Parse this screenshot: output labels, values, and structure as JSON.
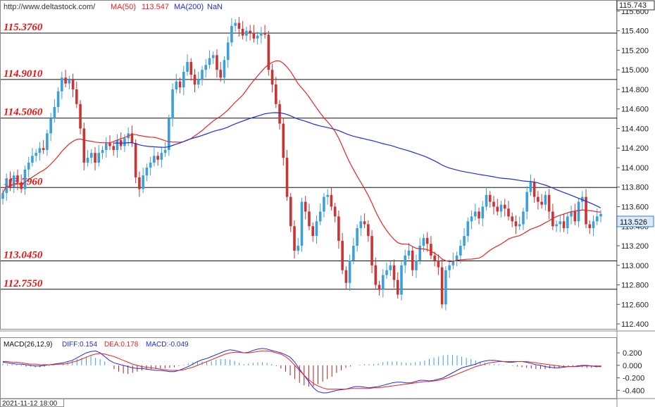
{
  "header": {
    "site": "http://www.deltastock.com/",
    "ma50_label": "MA(50)",
    "ma50_value": "113.547",
    "ma200_label": "MA(200)",
    "ma200_value": "NaN"
  },
  "macd_header": {
    "name": "MACD(26,12,9)",
    "diff": "DIFF:0.154",
    "dea": "DEA:0.178",
    "macd": "MACD:-0.049"
  },
  "footer": {
    "datetime": "2021-11-12 18:00"
  },
  "colors": {
    "up": "#3aa0dd",
    "down": "#cc3333",
    "ma50": "#ee2222",
    "ma200": "#1f2ee0",
    "level_text": "#ee1111",
    "diff": "#1f2ee0",
    "dea": "#ee2222"
  },
  "chart_data": [
    {
      "type": "candlestick",
      "ylim": [
        112.35,
        115.7
      ],
      "y_ticks": [
        "115.600",
        "115.400",
        "115.200",
        "115.000",
        "114.800",
        "114.600",
        "114.400",
        "114.200",
        "114.000",
        "113.800",
        "113.600",
        "113.400",
        "113.200",
        "113.000",
        "112.800",
        "112.600",
        "112.400"
      ],
      "top_readout": "115.743",
      "last_price": "113.526",
      "levels": [
        {
          "value": 115.376,
          "label": "115.3760"
        },
        {
          "value": 114.901,
          "label": "114.9010"
        },
        {
          "value": 114.506,
          "label": "114.5060"
        },
        {
          "value": 113.796,
          "label": "113.7960"
        },
        {
          "value": 113.045,
          "label": "113.0450"
        },
        {
          "value": 112.755,
          "label": "112.7550"
        }
      ],
      "close": [
        113.74,
        113.88,
        113.8,
        113.92,
        113.85,
        113.78,
        113.98,
        114.05,
        114.12,
        114.15,
        114.2,
        114.18,
        114.35,
        114.5,
        114.62,
        114.78,
        114.92,
        114.86,
        114.9,
        114.8,
        114.65,
        114.4,
        114.05,
        114.1,
        114.15,
        114.05,
        114.15,
        114.18,
        114.25,
        114.22,
        114.18,
        114.28,
        114.22,
        114.3,
        114.35,
        114.25,
        113.9,
        113.78,
        113.92,
        114.0,
        114.05,
        114.12,
        114.08,
        114.15,
        114.18,
        114.5,
        114.8,
        114.88,
        114.82,
        114.98,
        115.08,
        114.95,
        114.85,
        114.9,
        115.0,
        115.05,
        115.12,
        115.15,
        115.0,
        114.92,
        115.1,
        115.28,
        115.45,
        115.48,
        115.42,
        115.35,
        115.4,
        115.38,
        115.32,
        115.35,
        115.38,
        115.36,
        115.0,
        114.85,
        114.65,
        114.45,
        114.1,
        113.7,
        113.4,
        113.15,
        113.2,
        113.65,
        113.55,
        113.4,
        113.3,
        113.45,
        113.55,
        113.7,
        113.72,
        113.6,
        113.5,
        113.25,
        112.95,
        112.82,
        113.05,
        113.2,
        113.38,
        113.45,
        113.42,
        113.3,
        113.0,
        112.8,
        112.75,
        112.9,
        112.95,
        113.0,
        112.85,
        112.7,
        113.0,
        113.1,
        113.15,
        112.95,
        113.05,
        113.2,
        113.28,
        113.22,
        113.1,
        113.05,
        112.98,
        112.6,
        112.95,
        113.0,
        113.05,
        113.1,
        113.2,
        113.3,
        113.45,
        113.5,
        113.55,
        113.48,
        113.6,
        113.72,
        113.65,
        113.6,
        113.55,
        113.62,
        113.58,
        113.5,
        113.45,
        113.4,
        113.42,
        113.55,
        113.75,
        113.85,
        113.7,
        113.65,
        113.62,
        113.72,
        113.55,
        113.4,
        113.42,
        113.45,
        113.38,
        113.5,
        113.55,
        113.45,
        113.65,
        113.7,
        113.42,
        113.38,
        113.45,
        113.5,
        113.526
      ]
    },
    {
      "type": "macd",
      "ylim": [
        -0.52,
        0.28
      ],
      "y_ticks": [
        "0.200",
        "0.000",
        "-0.200",
        "-0.400"
      ],
      "diff": [
        0.05,
        0.04,
        0.03,
        0.02,
        0.02,
        0.01,
        0.0,
        -0.01,
        -0.01,
        0.0,
        0.01,
        0.02,
        0.03,
        0.04,
        0.06,
        0.08,
        0.12,
        0.16,
        0.2,
        0.22,
        0.23,
        0.2,
        0.14,
        0.08,
        0.04,
        0.02,
        0.0,
        -0.02,
        -0.04,
        -0.05,
        -0.05,
        -0.06,
        -0.07,
        -0.08,
        -0.08,
        -0.09,
        -0.1,
        -0.1,
        -0.08,
        -0.05,
        -0.02,
        0.02,
        0.06,
        0.09,
        0.11,
        0.14,
        0.17,
        0.2,
        0.23,
        0.25,
        0.24,
        0.22,
        0.2,
        0.21,
        0.24,
        0.26,
        0.27,
        0.26,
        0.24,
        0.22,
        0.2,
        0.17,
        0.13,
        0.05,
        -0.06,
        -0.16,
        -0.26,
        -0.36,
        -0.42,
        -0.44,
        -0.44,
        -0.42,
        -0.4,
        -0.39,
        -0.38,
        -0.36,
        -0.34,
        -0.34,
        -0.35,
        -0.36,
        -0.35,
        -0.34,
        -0.32,
        -0.3,
        -0.28,
        -0.27,
        -0.27,
        -0.28,
        -0.28,
        -0.26,
        -0.24,
        -0.24,
        -0.25,
        -0.24,
        -0.22,
        -0.2,
        -0.16,
        -0.12,
        -0.08,
        -0.04,
        -0.02,
        0.0,
        0.02,
        0.05,
        0.07,
        0.08,
        0.08,
        0.07,
        0.06,
        0.05,
        0.05,
        0.06,
        0.06,
        0.05,
        0.03,
        0.01,
        0.0,
        -0.02,
        -0.03,
        -0.04,
        -0.04,
        -0.03,
        -0.02,
        -0.02,
        -0.01,
        0.0,
        0.0,
        -0.01,
        -0.02,
        -0.02
      ],
      "dea": [
        0.06,
        0.06,
        0.05,
        0.05,
        0.04,
        0.03,
        0.02,
        0.02,
        0.01,
        0.01,
        0.01,
        0.01,
        0.02,
        0.02,
        0.03,
        0.05,
        0.07,
        0.1,
        0.13,
        0.16,
        0.18,
        0.19,
        0.18,
        0.16,
        0.14,
        0.11,
        0.08,
        0.05,
        0.02,
        0.0,
        -0.02,
        -0.03,
        -0.04,
        -0.05,
        -0.06,
        -0.07,
        -0.08,
        -0.08,
        -0.08,
        -0.07,
        -0.05,
        -0.03,
        0.0,
        0.03,
        0.06,
        0.09,
        0.12,
        0.15,
        0.18,
        0.2,
        0.21,
        0.21,
        0.2,
        0.2,
        0.21,
        0.22,
        0.23,
        0.23,
        0.22,
        0.2,
        0.18,
        0.14,
        0.08,
        0.0,
        -0.08,
        -0.16,
        -0.23,
        -0.29,
        -0.33,
        -0.36,
        -0.38,
        -0.38,
        -0.38,
        -0.38,
        -0.38,
        -0.37,
        -0.37,
        -0.37,
        -0.37,
        -0.37,
        -0.36,
        -0.36,
        -0.35,
        -0.34,
        -0.33,
        -0.32,
        -0.31,
        -0.3,
        -0.29,
        -0.28,
        -0.27,
        -0.26,
        -0.26,
        -0.25,
        -0.24,
        -0.22,
        -0.2,
        -0.17,
        -0.14,
        -0.11,
        -0.08,
        -0.05,
        -0.02,
        0.0,
        0.02,
        0.04,
        0.05,
        0.06,
        0.06,
        0.06,
        0.06,
        0.06,
        0.06,
        0.06,
        0.05,
        0.04,
        0.03,
        0.02,
        0.01,
        0.0,
        -0.01,
        -0.02,
        -0.02,
        -0.02,
        -0.02,
        -0.01,
        -0.01,
        -0.01,
        -0.01,
        -0.01
      ],
      "hist": [
        0.03,
        0.02,
        0.02,
        0.01,
        -0.01,
        -0.02,
        -0.02,
        -0.03,
        -0.03,
        -0.02,
        -0.01,
        0.0,
        0.01,
        0.03,
        0.05,
        0.07,
        0.1,
        0.12,
        0.14,
        0.15,
        0.12,
        0.1,
        0.06,
        0.0,
        -0.06,
        -0.1,
        -0.13,
        -0.14,
        -0.12,
        -0.1,
        -0.08,
        -0.07,
        -0.06,
        -0.06,
        -0.05,
        -0.05,
        -0.04,
        -0.03,
        -0.01,
        0.01,
        0.03,
        0.05,
        0.06,
        0.06,
        0.06,
        0.07,
        0.09,
        0.1,
        0.1,
        0.09,
        0.07,
        0.04,
        0.02,
        0.03,
        0.04,
        0.05,
        0.05,
        0.04,
        0.02,
        -0.01,
        -0.05,
        -0.1,
        -0.16,
        -0.22,
        -0.28,
        -0.32,
        -0.34,
        -0.34,
        -0.3,
        -0.26,
        -0.22,
        -0.18,
        -0.12,
        -0.08,
        -0.04,
        -0.02,
        0.0,
        0.01,
        0.02,
        0.02,
        0.02,
        0.03,
        0.05,
        0.06,
        0.06,
        0.06,
        0.05,
        0.04,
        0.04,
        0.05,
        0.06,
        0.08,
        0.1,
        0.12,
        0.14,
        0.16,
        0.17,
        0.17,
        0.16,
        0.14,
        0.12,
        0.1,
        0.08,
        0.06,
        0.04,
        0.02,
        0.02,
        0.02,
        0.01,
        0.0,
        -0.01,
        -0.02,
        -0.03,
        -0.04,
        -0.05,
        -0.06,
        -0.06,
        -0.06,
        -0.05,
        -0.05,
        -0.04,
        -0.03,
        -0.02,
        -0.02,
        -0.02,
        -0.03,
        -0.04,
        -0.04,
        -0.03,
        -0.03
      ]
    }
  ]
}
